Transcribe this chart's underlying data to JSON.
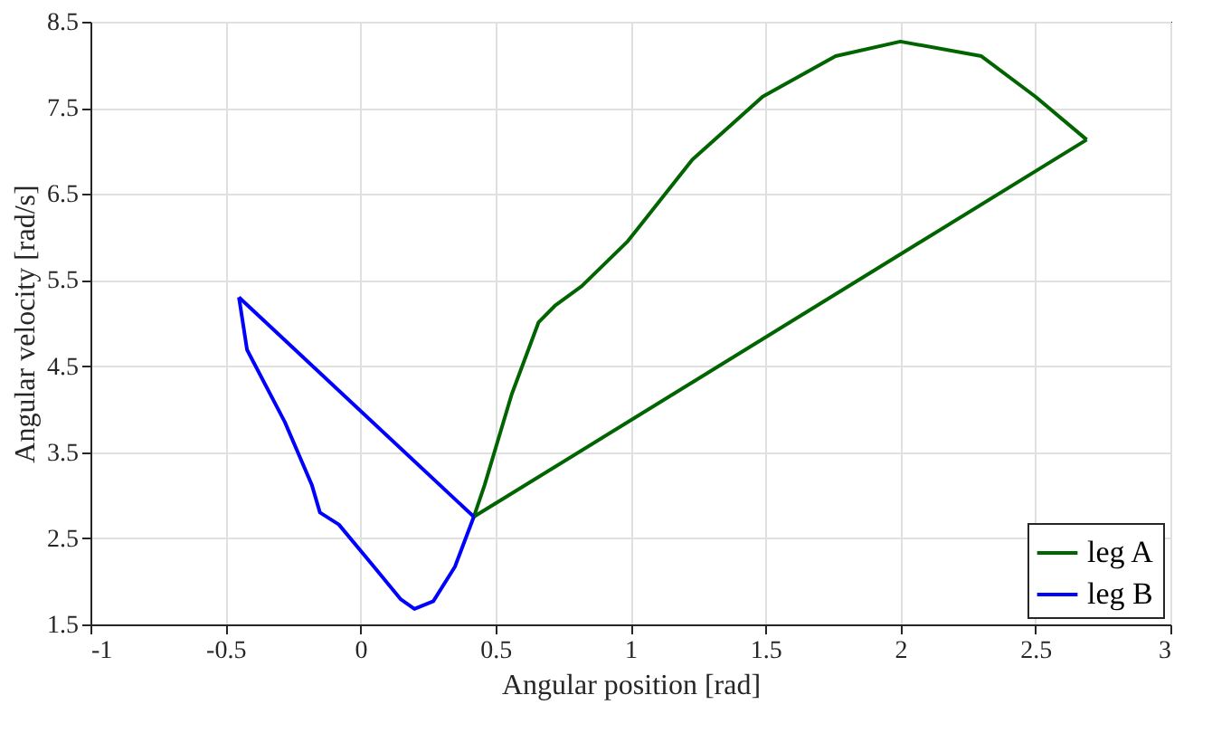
{
  "chart_data": {
    "type": "line",
    "xlabel": "Angular position [rad]",
    "ylabel": "Angular velocity [rad/s]",
    "xlim": [
      -1,
      3
    ],
    "xticks": [
      -1,
      -0.5,
      0,
      0.5,
      1,
      1.5,
      2,
      2.5,
      3
    ],
    "ylim": [
      1.5,
      8.5
    ],
    "yticks": [
      1.5,
      2.5,
      3.5,
      4.5,
      5.5,
      6.5,
      7.5,
      8.5
    ],
    "grid": true,
    "legend": "bottom right",
    "line_style": "solid",
    "marker": "none",
    "series": [
      {
        "name": "leg A",
        "color": "#006400",
        "x": [
          0.42,
          0.46,
          0.56,
          0.66,
          0.72,
          0.82,
          0.99,
          1.23,
          1.49,
          1.76,
          2.0,
          2.3,
          2.5,
          2.69
        ],
        "values": [
          2.75,
          3.12,
          4.17,
          5.01,
          5.2,
          5.43,
          5.95,
          6.9,
          7.63,
          8.1,
          8.27,
          8.1,
          7.63,
          7.13
        ]
      },
      {
        "color": "#006400",
        "x": [
          0.42,
          2.69
        ],
        "values": [
          2.75,
          7.13
        ]
      },
      {
        "name": "leg B",
        "color": "#0000ff",
        "x": [
          -0.45,
          -0.42,
          -0.28,
          -0.18,
          -0.15,
          -0.08,
          0.05,
          0.15,
          0.2,
          0.27,
          0.35,
          0.42
        ],
        "values": [
          5.3,
          4.69,
          3.85,
          3.12,
          2.8,
          2.66,
          2.17,
          1.79,
          1.68,
          1.77,
          2.17,
          2.75
        ]
      },
      {
        "color": "#0000ff",
        "x": [
          -0.45,
          0.42
        ],
        "values": [
          5.3,
          2.75
        ]
      }
    ]
  }
}
